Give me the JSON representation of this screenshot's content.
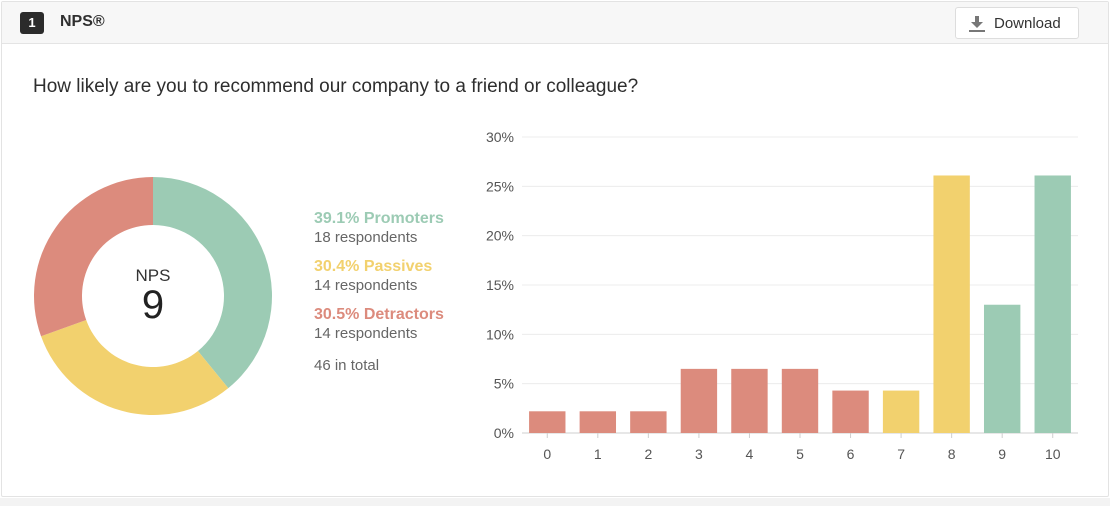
{
  "question": {
    "number": "1",
    "title": "NPS®",
    "text": "How likely are you to recommend our company to a friend or colleague?"
  },
  "toolbar": {
    "download_label": "Download",
    "download_icon": "download-icon"
  },
  "nps": {
    "label": "NPS",
    "value": "9"
  },
  "legend": {
    "promoters": {
      "pct_label": "39.1% Promoters",
      "respondents": "18 respondents",
      "color": "#9ccbb4"
    },
    "passives": {
      "pct_label": "30.4% Passives",
      "respondents": "14 respondents",
      "color": "#f2d16e"
    },
    "detractors": {
      "pct_label": "30.5% Detractors",
      "respondents": "14 respondents",
      "color": "#dc8b7d"
    },
    "total": "46 in total"
  },
  "chart_data": [
    {
      "type": "pie",
      "categories": [
        "Promoters",
        "Passives",
        "Detractors"
      ],
      "values": [
        39.1,
        30.4,
        30.5
      ],
      "colors": [
        "#9ccbb4",
        "#f2d16e",
        "#dc8b7d"
      ],
      "title": ""
    },
    {
      "type": "bar",
      "categories": [
        "0",
        "1",
        "2",
        "3",
        "4",
        "5",
        "6",
        "7",
        "8",
        "9",
        "10"
      ],
      "values": [
        2.2,
        2.2,
        2.2,
        6.5,
        6.5,
        6.5,
        4.3,
        4.3,
        26.1,
        13.0,
        26.1
      ],
      "bar_colors": [
        "#dc8b7d",
        "#dc8b7d",
        "#dc8b7d",
        "#dc8b7d",
        "#dc8b7d",
        "#dc8b7d",
        "#dc8b7d",
        "#f2d16e",
        "#f2d16e",
        "#9ccbb4",
        "#9ccbb4"
      ],
      "ylim": [
        0,
        30
      ],
      "yticks": [
        "0%",
        "5%",
        "10%",
        "15%",
        "20%",
        "25%",
        "30%"
      ],
      "grid": true,
      "title": "",
      "xlabel": "",
      "ylabel": ""
    }
  ]
}
